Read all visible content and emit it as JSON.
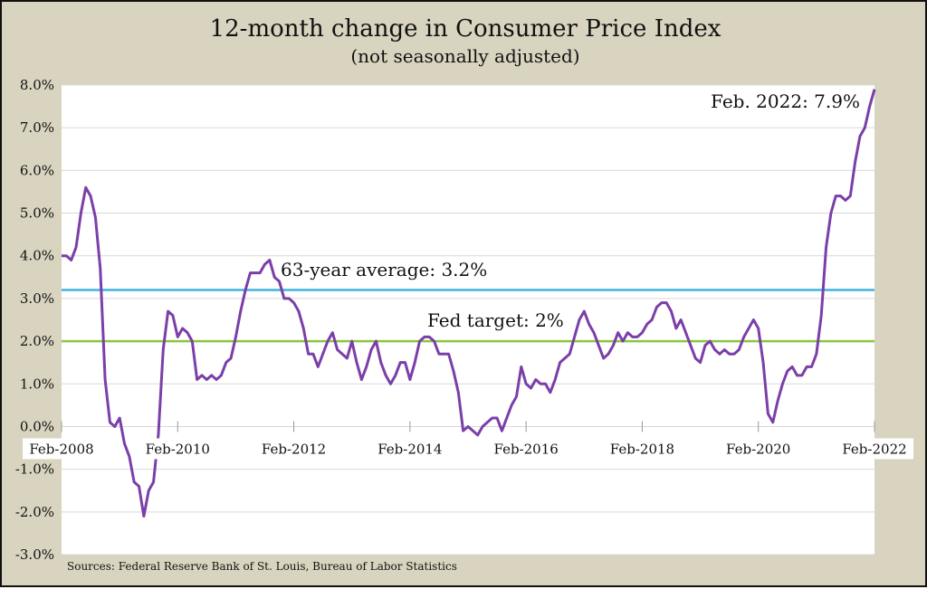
{
  "chart_data": {
    "type": "line",
    "title": "12-month change in Consumer Price Index",
    "subtitle": "(not seasonally adjusted)",
    "source": "Sources: Federal Reserve Bank of St. Louis, Bureau of Labor Statistics",
    "ylim": [
      -3.0,
      8.0
    ],
    "y_ticks": [
      8,
      7,
      6,
      5,
      4,
      3,
      2,
      1,
      0,
      -1,
      -2,
      -3
    ],
    "y_tick_labels": [
      "8.0%",
      "7.0%",
      "6.0%",
      "5.0%",
      "4.0%",
      "3.0%",
      "2.0%",
      "1.0%",
      "0.0%",
      "-1.0%",
      "-2.0%",
      "-3.0%"
    ],
    "x_start": "Feb-2008",
    "x_end": "Feb-2022",
    "x_tick_labels": [
      "Feb-2008",
      "Feb-2010",
      "Feb-2012",
      "Feb-2014",
      "Feb-2016",
      "Feb-2018",
      "Feb-2020",
      "Feb-2022"
    ],
    "grid": true,
    "series": [
      {
        "name": "CPI 12-month change",
        "color": "#7a3fa8",
        "start": "2008-02",
        "frequency": "monthly",
        "values": [
          4.0,
          4.0,
          3.9,
          4.2,
          5.0,
          5.6,
          5.4,
          4.9,
          3.7,
          1.1,
          0.1,
          0.0,
          0.2,
          -0.4,
          -0.7,
          -1.3,
          -1.4,
          -2.1,
          -1.5,
          -1.3,
          -0.2,
          1.8,
          2.7,
          2.6,
          2.1,
          2.3,
          2.2,
          2.0,
          1.1,
          1.2,
          1.1,
          1.2,
          1.1,
          1.2,
          1.5,
          1.6,
          2.1,
          2.7,
          3.2,
          3.6,
          3.6,
          3.6,
          3.8,
          3.9,
          3.5,
          3.4,
          3.0,
          3.0,
          2.9,
          2.7,
          2.3,
          1.7,
          1.7,
          1.4,
          1.7,
          2.0,
          2.2,
          1.8,
          1.7,
          1.6,
          2.0,
          1.5,
          1.1,
          1.4,
          1.8,
          2.0,
          1.5,
          1.2,
          1.0,
          1.2,
          1.5,
          1.5,
          1.1,
          1.5,
          2.0,
          2.1,
          2.1,
          2.0,
          1.7,
          1.7,
          1.7,
          1.3,
          0.8,
          -0.1,
          0.0,
          -0.1,
          -0.2,
          0.0,
          0.1,
          0.2,
          0.2,
          -0.1,
          0.2,
          0.5,
          0.7,
          1.4,
          1.0,
          0.9,
          1.1,
          1.0,
          1.0,
          0.8,
          1.1,
          1.5,
          1.6,
          1.7,
          2.1,
          2.5,
          2.7,
          2.4,
          2.2,
          1.9,
          1.6,
          1.7,
          1.9,
          2.2,
          2.0,
          2.2,
          2.1,
          2.1,
          2.2,
          2.4,
          2.5,
          2.8,
          2.9,
          2.9,
          2.7,
          2.3,
          2.5,
          2.2,
          1.9,
          1.6,
          1.5,
          1.9,
          2.0,
          1.8,
          1.7,
          1.8,
          1.7,
          1.7,
          1.8,
          2.1,
          2.3,
          2.5,
          2.3,
          1.5,
          0.3,
          0.1,
          0.6,
          1.0,
          1.3,
          1.4,
          1.2,
          1.2,
          1.4,
          1.4,
          1.7,
          2.6,
          4.2,
          5.0,
          5.4,
          5.4,
          5.3,
          5.4,
          6.2,
          6.8,
          7.0,
          7.5,
          7.9
        ]
      }
    ],
    "reference_lines": [
      {
        "name": "63-year average",
        "value": 3.2,
        "label": "63-year average: 3.2%",
        "color": "#3fb4e0"
      },
      {
        "name": "Fed target",
        "value": 2.0,
        "label": "Fed target: 2%",
        "color": "#8cc63f"
      }
    ],
    "annotations": [
      {
        "text": "Feb. 2022: 7.9%",
        "x": "2022-02",
        "y": 7.9
      }
    ]
  }
}
